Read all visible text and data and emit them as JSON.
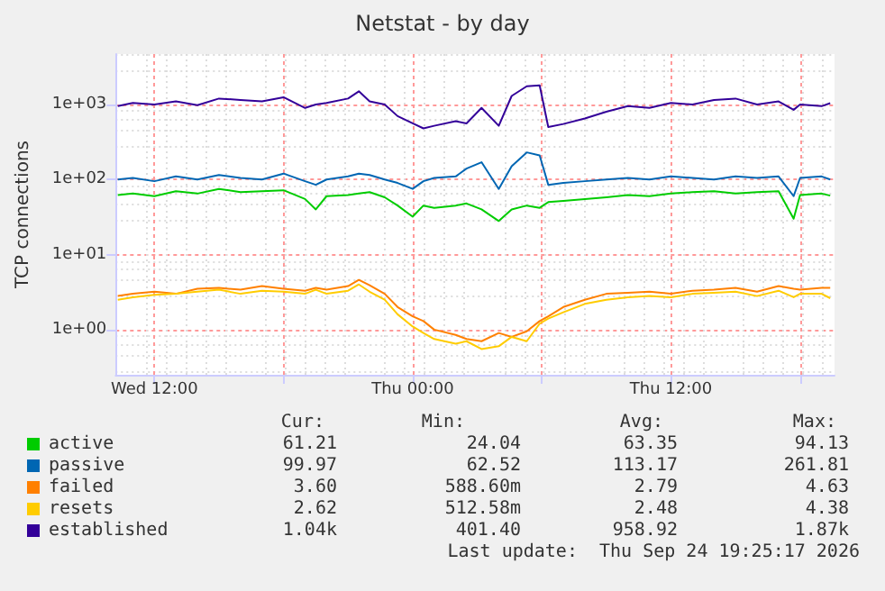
{
  "chart_data": {
    "type": "line",
    "title": "Netstat - by day",
    "ylabel": "TCP connections",
    "log": true,
    "grid": true,
    "legend": "bottom",
    "x": [
      "2026-09-23T10:18",
      "2026-09-23T11:00",
      "2026-09-23T12:00",
      "2026-09-23T13:00",
      "2026-09-23T14:00",
      "2026-09-23T15:00",
      "2026-09-23T16:00",
      "2026-09-23T17:00",
      "2026-09-23T18:00",
      "2026-09-23T19:00",
      "2026-09-23T19:30",
      "2026-09-23T20:00",
      "2026-09-23T21:00",
      "2026-09-23T21:30",
      "2026-09-23T22:00",
      "2026-09-23T22:42",
      "2026-09-23T23:18",
      "2026-09-24T00:00",
      "2026-09-24T00:30",
      "2026-09-24T01:00",
      "2026-09-24T02:00",
      "2026-09-24T02:30",
      "2026-09-24T03:12",
      "2026-09-24T04:00",
      "2026-09-24T04:36",
      "2026-09-24T05:18",
      "2026-09-24T05:54",
      "2026-09-24T06:18",
      "2026-09-24T07:00",
      "2026-09-24T08:00",
      "2026-09-24T09:00",
      "2026-09-24T10:00",
      "2026-09-24T11:00",
      "2026-09-24T12:00",
      "2026-09-24T13:00",
      "2026-09-24T14:00",
      "2026-09-24T15:00",
      "2026-09-24T16:00",
      "2026-09-24T17:00",
      "2026-09-24T17:42",
      "2026-09-24T18:00",
      "2026-09-24T19:00",
      "2026-09-24T19:24"
    ],
    "xlim": [
      "2026-09-23T10:12",
      "2026-09-24T19:36"
    ],
    "xticks": [
      {
        "value": "2026-09-23T12:00",
        "label": "Wed 12:00"
      },
      {
        "value": "2026-09-23T18:00",
        "label": null
      },
      {
        "value": "2026-09-24T00:00",
        "label": "Thu 00:00"
      },
      {
        "value": "2026-09-24T06:00",
        "label": null
      },
      {
        "value": "2026-09-24T12:00",
        "label": "Thu 12:00"
      },
      {
        "value": "2026-09-24T18:00",
        "label": null
      }
    ],
    "ylim": [
      0.25,
      4700
    ],
    "yticks": [
      {
        "value": 1,
        "label": "1e+00"
      },
      {
        "value": 10,
        "label": "1e+01"
      },
      {
        "value": 100,
        "label": "1e+02"
      },
      {
        "value": 1000,
        "label": "1e+03"
      }
    ],
    "series": [
      {
        "name": "active",
        "color": "#00cc00",
        "values": [
          62,
          65,
          60,
          70,
          65,
          75,
          68,
          70,
          72,
          55,
          40,
          60,
          62,
          65,
          68,
          58,
          45,
          32,
          45,
          42,
          45,
          48,
          40,
          28,
          40,
          45,
          42,
          50,
          52,
          55,
          58,
          62,
          60,
          65,
          68,
          70,
          65,
          68,
          70,
          30,
          62,
          65,
          61
        ]
      },
      {
        "name": "passive",
        "color": "#0066b3",
        "values": [
          100,
          105,
          95,
          110,
          100,
          115,
          105,
          100,
          120,
          95,
          85,
          100,
          110,
          120,
          115,
          100,
          90,
          75,
          95,
          105,
          110,
          140,
          170,
          75,
          150,
          230,
          210,
          85,
          90,
          95,
          100,
          105,
          100,
          110,
          105,
          100,
          110,
          105,
          110,
          60,
          105,
          110,
          100
        ]
      },
      {
        "name": "failed",
        "color": "#ff8000",
        "values": [
          2.8,
          3.0,
          3.2,
          3.0,
          3.5,
          3.6,
          3.4,
          3.8,
          3.5,
          3.3,
          3.6,
          3.4,
          3.8,
          4.6,
          3.9,
          3.0,
          2.0,
          1.5,
          1.3,
          1.0,
          0.85,
          0.75,
          0.7,
          0.9,
          0.8,
          0.95,
          1.3,
          1.5,
          2.0,
          2.5,
          3.0,
          3.1,
          3.2,
          3.0,
          3.3,
          3.4,
          3.6,
          3.2,
          3.8,
          3.5,
          3.4,
          3.6,
          3.6
        ]
      },
      {
        "name": "resets",
        "color": "#ffcc00",
        "values": [
          2.5,
          2.7,
          2.9,
          3.0,
          3.2,
          3.4,
          3.0,
          3.3,
          3.2,
          3.0,
          3.4,
          3.0,
          3.3,
          4.0,
          3.2,
          2.5,
          1.6,
          1.1,
          0.9,
          0.75,
          0.65,
          0.7,
          0.55,
          0.6,
          0.8,
          0.7,
          1.2,
          1.4,
          1.7,
          2.2,
          2.5,
          2.7,
          2.8,
          2.7,
          3.0,
          3.1,
          3.2,
          2.8,
          3.3,
          2.7,
          3.0,
          3.0,
          2.62
        ]
      },
      {
        "name": "established",
        "color": "#330099",
        "values": [
          950,
          1050,
          1000,
          1100,
          980,
          1200,
          1150,
          1100,
          1250,
          900,
          1000,
          1050,
          1200,
          1500,
          1100,
          1000,
          700,
          560,
          480,
          520,
          600,
          560,
          900,
          520,
          1300,
          1750,
          1800,
          500,
          550,
          650,
          800,
          950,
          900,
          1050,
          1000,
          1150,
          1200,
          1000,
          1100,
          850,
          1000,
          950,
          1040
        ]
      }
    ],
    "annotations": [
      "Cur:",
      "Min:",
      "Avg:",
      "Max:",
      "61.21",
      "24.04",
      "63.35",
      "94.13",
      "99.97",
      "62.52",
      "113.17",
      "261.81",
      "3.60",
      "588.60m",
      "2.79",
      "4.63",
      "2.62",
      "512.58m",
      "2.48",
      "4.38",
      "1.04k",
      "401.40",
      "958.92",
      "1.87k",
      "Last update:  Thu Sep 24 19:25:17 2026"
    ]
  }
}
